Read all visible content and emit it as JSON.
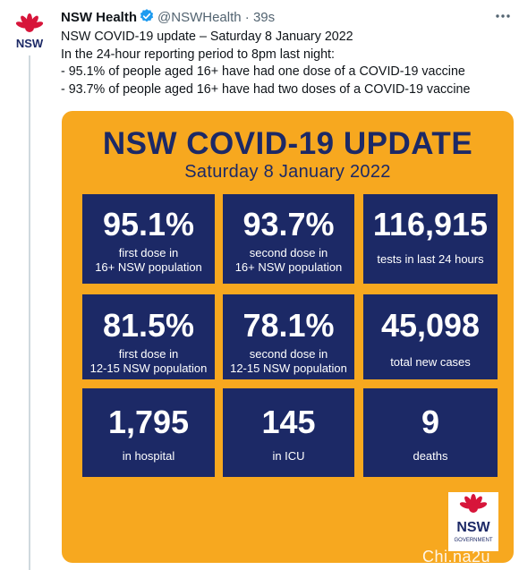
{
  "tweet": {
    "display_name": "NSW Health",
    "handle": "@NSWHealth",
    "separator": "·",
    "time": "39s",
    "avatar_label": "NSW",
    "lines": [
      "NSW COVID-19 update – Saturday 8 January 2022",
      "In the 24-hour reporting period to 8pm last night:",
      "- 95.1% of people aged 16+ have had one dose of a COVID-19 vaccine",
      "- 93.7% of people aged 16+ have had two doses of a COVID-19 vaccine"
    ]
  },
  "card": {
    "title": "NSW COVID-19 UPDATE",
    "date": "Saturday 8 January 2022",
    "logo_text": "NSW",
    "logo_subtext": "GOVERNMENT",
    "tiles": [
      {
        "value": "95.1%",
        "line1": "first dose in",
        "line2": "16+ NSW population"
      },
      {
        "value": "93.7%",
        "line1": "second dose in",
        "line2": "16+ NSW population"
      },
      {
        "value": "116,915",
        "line1": "tests in last 24 hours",
        "line2": ""
      },
      {
        "value": "81.5%",
        "line1": "first dose in",
        "line2": "12-15 NSW population"
      },
      {
        "value": "78.1%",
        "line1": "second dose in",
        "line2": "12-15 NSW population"
      },
      {
        "value": "45,098",
        "line1": "total new cases",
        "line2": ""
      },
      {
        "value": "1,795",
        "line1": "in hospital",
        "line2": ""
      },
      {
        "value": "145",
        "line1": "in ICU",
        "line2": ""
      },
      {
        "value": "9",
        "line1": "deaths",
        "line2": ""
      }
    ]
  },
  "watermark": "Chi.na2u",
  "colors": {
    "card_bg": "#f7a81f",
    "tile_bg": "#1c2966",
    "waratah_red": "#d7153a",
    "verified_blue": "#1d9bf0"
  }
}
